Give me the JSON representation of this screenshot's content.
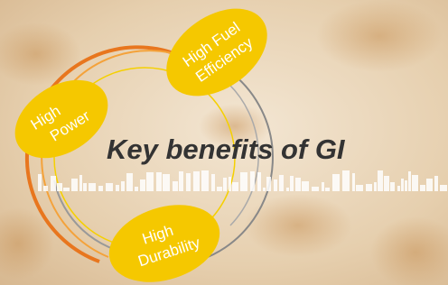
{
  "title": "Key benefits of GI",
  "benefits": [
    {
      "lines": [
        "High",
        "Power"
      ]
    },
    {
      "lines": [
        "High Fuel",
        "Efficiency"
      ]
    },
    {
      "lines": [
        "High",
        "Durability"
      ]
    }
  ]
}
